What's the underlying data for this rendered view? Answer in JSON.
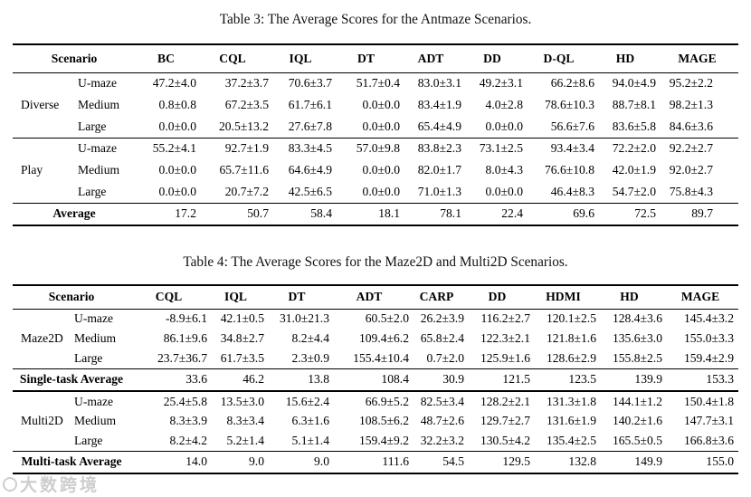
{
  "page": {
    "background": "#ffffff",
    "text_color": "#000000"
  },
  "watermark": {
    "icon": "circle-logo",
    "text": "大数跨境",
    "color": "#c6c6c6"
  },
  "tables": [
    {
      "id": "table-3",
      "caption": "Table 3: The Average Scores for the Antmaze Scenarios.",
      "header": {
        "scenario_label": "Scenario",
        "methods": [
          "BC",
          "CQL",
          "IQL",
          "DT",
          "ADT",
          "DD",
          "D-QL",
          "HD",
          "MAGE"
        ]
      },
      "sections": [
        {
          "type": "group",
          "name": "Diverse",
          "rows": [
            {
              "scenario": "U-maze",
              "values": [
                "47.2±4.0",
                "37.2±3.7",
                "70.6±3.7",
                "51.7±0.4",
                "83.0±3.1",
                "49.2±3.1",
                "66.2±8.6",
                "94.0±4.9",
                "95.2±2.2"
              ],
              "bold_cols": [
                8
              ]
            },
            {
              "scenario": "Medium",
              "values": [
                "0.8±0.8",
                "67.2±3.5",
                "61.7±6.1",
                "0.0±0.0",
                "83.4±1.9",
                "4.0±2.8",
                "78.6±10.3",
                "88.7±8.1",
                "98.2±1.3"
              ],
              "bold_cols": [
                8
              ]
            },
            {
              "scenario": "Large",
              "values": [
                "0.0±0.0",
                "20.5±13.2",
                "27.6±7.8",
                "0.0±0.0",
                "65.4±4.9",
                "0.0±0.0",
                "56.6±7.6",
                "83.6±5.8",
                "84.6±3.6"
              ],
              "bold_cols": [
                8
              ]
            }
          ]
        },
        {
          "type": "group",
          "name": "Play",
          "rows": [
            {
              "scenario": "U-maze",
              "values": [
                "55.2±4.1",
                "92.7±1.9",
                "83.3±4.5",
                "57.0±9.8",
                "83.8±2.3",
                "73.1±2.5",
                "93.4±3.4",
                "72.2±2.0",
                "92.2±2.7"
              ],
              "bold_cols": [
                6
              ]
            },
            {
              "scenario": "Medium",
              "values": [
                "0.0±0.0",
                "65.7±11.6",
                "64.6±4.9",
                "0.0±0.0",
                "82.0±1.7",
                "8.0±4.3",
                "76.6±10.8",
                "42.0±1.9",
                "92.0±2.7"
              ],
              "bold_cols": [
                8
              ]
            },
            {
              "scenario": "Large",
              "values": [
                "0.0±0.0",
                "20.7±7.2",
                "42.5±6.5",
                "0.0±0.0",
                "71.0±1.3",
                "0.0±0.0",
                "46.4±8.3",
                "54.7±2.0",
                "75.8±4.3"
              ],
              "bold_cols": [
                8
              ]
            }
          ]
        },
        {
          "type": "summary",
          "label": "Average",
          "values": [
            "17.2",
            "50.7",
            "58.4",
            "18.1",
            "78.1",
            "22.4",
            "69.6",
            "72.5",
            "89.7"
          ],
          "bold_cols": [
            8
          ]
        }
      ]
    },
    {
      "id": "table-4",
      "caption": "Table 4: The Average Scores for the Maze2D and Multi2D Scenarios.",
      "header": {
        "scenario_label": "Scenario",
        "methods": [
          "CQL",
          "IQL",
          "DT",
          "ADT",
          "CARP",
          "DD",
          "HDMI",
          "HD",
          "MAGE"
        ]
      },
      "sections": [
        {
          "type": "group",
          "name": "Maze2D",
          "rows": [
            {
              "scenario": "U-maze",
              "values": [
                "-8.9±6.1",
                "42.1±0.5",
                "31.0±21.3",
                "60.5±2.0",
                "26.2±3.9",
                "116.2±2.7",
                "120.1±2.5",
                "128.4±3.6",
                "145.4±3.2"
              ],
              "bold_cols": [
                8
              ]
            },
            {
              "scenario": "Medium",
              "values": [
                "86.1±9.6",
                "34.8±2.7",
                "8.2±4.4",
                "109.4±6.2",
                "65.8±2.4",
                "122.3±2.1",
                "121.8±1.6",
                "135.6±3.0",
                "155.0±3.3"
              ],
              "bold_cols": [
                8
              ]
            },
            {
              "scenario": "Large",
              "values": [
                "23.7±36.7",
                "61.7±3.5",
                "2.3±0.9",
                "155.4±10.4",
                "0.7±2.0",
                "125.9±1.6",
                "128.6±2.9",
                "155.8±2.5",
                "159.4±2.9"
              ],
              "bold_cols": [
                8
              ]
            }
          ]
        },
        {
          "type": "summary",
          "label": "Single-task Average",
          "values": [
            "33.6",
            "46.2",
            "13.8",
            "108.4",
            "30.9",
            "121.5",
            "123.5",
            "139.9",
            "153.3"
          ],
          "bold_cols": [
            8
          ]
        },
        {
          "type": "group",
          "name": "Multi2D",
          "rows": [
            {
              "scenario": "U-maze",
              "values": [
                "25.4±5.8",
                "13.5±3.0",
                "15.6±2.4",
                "66.9±5.2",
                "82.5±3.4",
                "128.2±2.1",
                "131.3±1.8",
                "144.1±1.2",
                "150.4±1.8"
              ],
              "bold_cols": [
                8
              ]
            },
            {
              "scenario": "Medium",
              "values": [
                "8.3±3.9",
                "8.3±3.4",
                "6.3±1.6",
                "108.5±6.2",
                "48.7±2.6",
                "129.7±2.7",
                "131.6±1.9",
                "140.2±1.6",
                "147.7±3.1"
              ],
              "bold_cols": [
                8
              ]
            },
            {
              "scenario": "Large",
              "values": [
                "8.2±4.2",
                "5.2±1.4",
                "5.1±1.4",
                "159.4±9.2",
                "32.2±3.2",
                "130.5±4.2",
                "135.4±2.5",
                "165.5±0.5",
                "166.8±3.6"
              ],
              "bold_cols": [
                8
              ]
            }
          ]
        },
        {
          "type": "summary",
          "label": "Multi-task Average",
          "values": [
            "14.0",
            "9.0",
            "9.0",
            "111.6",
            "54.5",
            "129.5",
            "132.8",
            "149.9",
            "155.0"
          ],
          "bold_cols": [
            8
          ]
        }
      ]
    }
  ]
}
